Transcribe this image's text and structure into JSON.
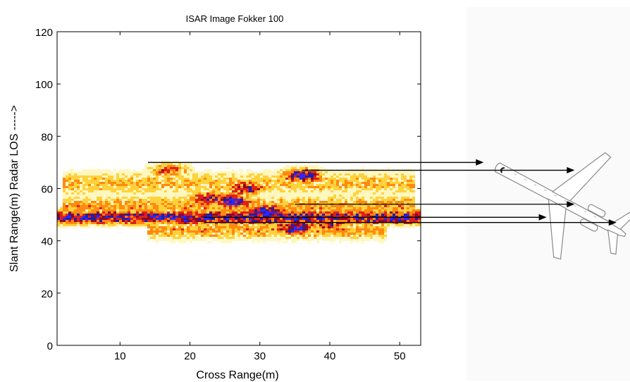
{
  "chart_data": {
    "type": "heatmap",
    "title": "ISAR Image  Fokker 100",
    "xlabel": "Cross Range(m)",
    "ylabel": "Slant Range(m)  Radar LOS ----->",
    "xlim": [
      1,
      53
    ],
    "ylim": [
      0,
      120
    ],
    "x_ticks": [
      10,
      20,
      30,
      40,
      50
    ],
    "y_ticks": [
      0,
      20,
      40,
      60,
      80,
      100,
      120
    ],
    "grid": false,
    "colormap": [
      "#fff7c0",
      "#ffd23c",
      "#ff8a10",
      "#e0201a",
      "#8a0a2a",
      "#1f1fb0",
      "#2a2aff"
    ],
    "bands": [
      {
        "y": 49,
        "x_from": 1,
        "x_to": 53,
        "thickness": 3,
        "intensity": 0.85
      },
      {
        "y": 53,
        "x_from": 2,
        "x_to": 52,
        "thickness": 5,
        "intensity": 0.45
      },
      {
        "y": 62,
        "x_from": 2,
        "x_to": 52,
        "thickness": 5,
        "intensity": 0.4
      },
      {
        "y": 44,
        "x_from": 14,
        "x_to": 48,
        "thickness": 4,
        "intensity": 0.45
      }
    ],
    "scatterers": [
      {
        "x": 19,
        "y": 49,
        "intensity": 1.0
      },
      {
        "x": 26,
        "y": 55,
        "intensity": 1.0
      },
      {
        "x": 31,
        "y": 51,
        "intensity": 1.0
      },
      {
        "x": 35,
        "y": 45,
        "intensity": 1.0
      },
      {
        "x": 36,
        "y": 65,
        "intensity": 0.95
      },
      {
        "x": 23,
        "y": 56,
        "intensity": 0.85
      },
      {
        "x": 28,
        "y": 60,
        "intensity": 0.8
      },
      {
        "x": 17,
        "y": 67,
        "intensity": 0.6
      },
      {
        "x": 40,
        "y": 46,
        "intensity": 0.75
      }
    ],
    "arrows": [
      {
        "from": [
          14,
          70
        ],
        "to": [
          62,
          70
        ]
      },
      {
        "from": [
          36,
          67
        ],
        "to": [
          75,
          67
        ]
      },
      {
        "from": [
          35,
          54
        ],
        "to": [
          75,
          54
        ]
      },
      {
        "from": [
          22,
          49
        ],
        "to": [
          71,
          49
        ]
      },
      {
        "from": [
          22,
          47
        ],
        "to": [
          81,
          47
        ]
      }
    ]
  }
}
